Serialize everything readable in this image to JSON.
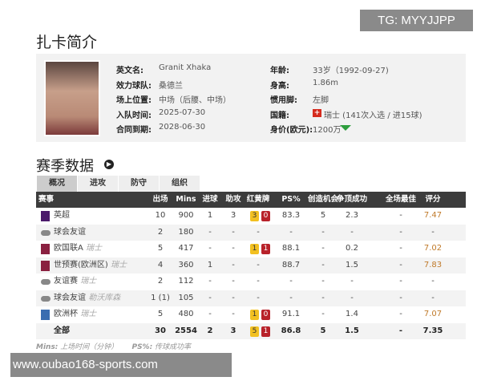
{
  "watermark_top": "TG: MYYJJPP",
  "title": "扎卡简介",
  "profile": {
    "left": [
      [
        "英文名:",
        "Granit Xhaka"
      ],
      [
        "效力球队:",
        "桑德兰"
      ],
      [
        "场上位置:",
        "中场（后腰、中场）"
      ],
      [
        "入队时间:",
        "2025-07-30"
      ],
      [
        "合同到期:",
        "2028-06-30"
      ]
    ],
    "right": [
      [
        "年龄:",
        "33岁（1992-09-27)"
      ],
      [
        "身高:",
        "1.86m"
      ],
      [
        "惯用脚:",
        "左脚"
      ],
      [
        "国籍:",
        "瑞士 (141次入选 / 进15球)"
      ],
      [
        "身价(欧元):",
        "1200万"
      ]
    ],
    "value_trend": "down",
    "trend_color": "#2e9e3e",
    "flag_color": "#d52b1e"
  },
  "section": "赛季数据",
  "tabs": [
    "概况",
    "进攻",
    "防守",
    "组织"
  ],
  "columns": [
    "赛事",
    "出场",
    "Mins",
    "进球",
    "助攻",
    "红黄牌",
    "PS%",
    "创造机会",
    "争顶成功",
    "全场最佳",
    "评分"
  ],
  "rows": [
    {
      "comp": "英超",
      "team": "",
      "apps": "10",
      "mins": "900",
      "goals": "1",
      "assists": "3",
      "yellow": "3",
      "red": "0",
      "ps": "83.3",
      "chances": "5",
      "aerial": "2.3",
      "motm": "-",
      "rating": "7.47",
      "icon": "premier-league-icon"
    },
    {
      "comp": "球会友谊",
      "team": "",
      "apps": "2",
      "mins": "180",
      "goals": "-",
      "assists": "-",
      "yellow": "",
      "red": "",
      "cards": "-",
      "ps": "-",
      "chances": "-",
      "aerial": "-",
      "motm": "-",
      "rating": "-",
      "icon": "friendly-icon"
    },
    {
      "comp": "欧国联A",
      "team": "瑞士",
      "apps": "5",
      "mins": "417",
      "goals": "-",
      "assists": "-",
      "yellow": "1",
      "red": "1",
      "ps": "88.1",
      "chances": "-",
      "aerial": "0.2",
      "motm": "-",
      "rating": "7.02",
      "icon": "nations-league-icon"
    },
    {
      "comp": "世预赛(欧洲区)",
      "team": "瑞士",
      "apps": "4",
      "mins": "360",
      "goals": "1",
      "assists": "-",
      "yellow": "",
      "red": "",
      "cards": "-",
      "ps": "88.7",
      "chances": "-",
      "aerial": "1.5",
      "motm": "-",
      "rating": "7.83",
      "icon": "world-cup-qualifier-icon"
    },
    {
      "comp": "友谊赛",
      "team": "瑞士",
      "apps": "2",
      "mins": "112",
      "goals": "-",
      "assists": "-",
      "yellow": "",
      "red": "",
      "cards": "-",
      "ps": "-",
      "chances": "-",
      "aerial": "-",
      "motm": "-",
      "rating": "-",
      "icon": "friendly-icon"
    },
    {
      "comp": "球会友谊",
      "team": "勒沃库森",
      "apps": "1 (1)",
      "mins": "105",
      "goals": "-",
      "assists": "-",
      "yellow": "",
      "red": "",
      "cards": "-",
      "ps": "-",
      "chances": "-",
      "aerial": "-",
      "motm": "-",
      "rating": "-",
      "icon": "friendly-icon"
    },
    {
      "comp": "欧洲杯",
      "team": "瑞士",
      "apps": "5",
      "mins": "480",
      "goals": "-",
      "assists": "-",
      "yellow": "1",
      "red": "0",
      "ps": "91.1",
      "chances": "-",
      "aerial": "1.4",
      "motm": "-",
      "rating": "7.07",
      "icon": "euro-cup-icon"
    },
    {
      "comp": "全部",
      "team": "",
      "apps": "30",
      "mins": "2554",
      "goals": "2",
      "assists": "3",
      "yellow": "5",
      "red": "1",
      "ps": "86.8",
      "chances": "5",
      "aerial": "1.5",
      "motm": "-",
      "rating": "7.35",
      "icon": ""
    }
  ],
  "footnote": {
    "mins_key": "Mins:",
    "mins_desc": "上场时间（分钟）",
    "ps_key": "PS%:",
    "ps_desc": "传球成功率"
  },
  "watermark_bottom": "www.oubao168-sports.com"
}
